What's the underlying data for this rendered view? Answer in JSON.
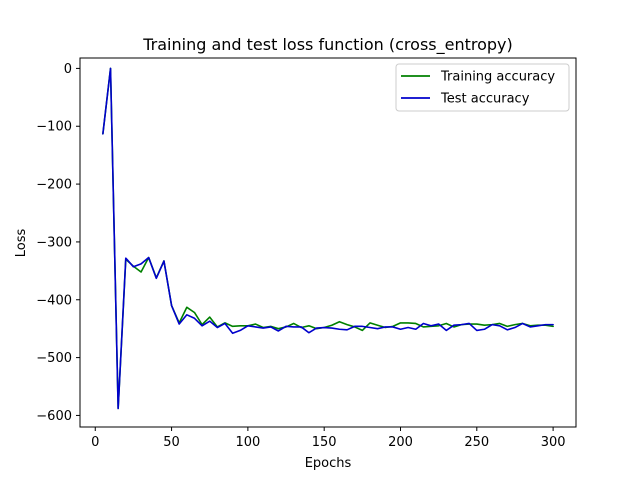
{
  "chart_data": {
    "type": "line",
    "title": "Training and test loss function (cross_entropy)",
    "xlabel": "Epochs",
    "ylabel": "Loss",
    "xlim": [
      -10,
      315
    ],
    "ylim": [
      -620,
      18
    ],
    "xticks": [
      0,
      50,
      100,
      150,
      200,
      250,
      300
    ],
    "yticks": [
      0,
      -100,
      -200,
      -300,
      -400,
      -500,
      -600
    ],
    "grid": false,
    "legend_position": "top-right",
    "x": [
      5,
      10,
      15,
      20,
      25,
      30,
      35,
      40,
      45,
      50,
      55,
      60,
      65,
      70,
      75,
      80,
      85,
      90,
      95,
      100,
      105,
      110,
      115,
      120,
      125,
      130,
      135,
      140,
      145,
      150,
      155,
      160,
      165,
      170,
      175,
      180,
      185,
      190,
      195,
      200,
      205,
      210,
      215,
      220,
      225,
      230,
      235,
      240,
      245,
      250,
      255,
      260,
      265,
      270,
      275,
      280,
      285,
      290,
      295,
      300
    ],
    "series": [
      {
        "name": "Training accuracy",
        "color": "#008000",
        "values": [
          -113,
          0,
          -588,
          -330,
          -342,
          -352,
          -327,
          -362,
          -333,
          -410,
          -440,
          -413,
          -422,
          -443,
          -430,
          -447,
          -440,
          -446,
          -445,
          -445,
          -442,
          -448,
          -446,
          -450,
          -447,
          -441,
          -448,
          -445,
          -450,
          -448,
          -444,
          -438,
          -443,
          -447,
          -453,
          -440,
          -444,
          -448,
          -446,
          -440,
          -440,
          -441,
          -447,
          -446,
          -445,
          -441,
          -447,
          -443,
          -442,
          -442,
          -444,
          -443,
          -441,
          -446,
          -443,
          -441,
          -445,
          -444,
          -444,
          -446
        ]
      },
      {
        "name": "Test accuracy",
        "color": "#0000cc",
        "values": [
          -113,
          0,
          -588,
          -328,
          -343,
          -338,
          -327,
          -363,
          -333,
          -410,
          -442,
          -426,
          -432,
          -445,
          -437,
          -448,
          -441,
          -458,
          -453,
          -445,
          -447,
          -449,
          -447,
          -454,
          -446,
          -447,
          -447,
          -457,
          -449,
          -448,
          -449,
          -451,
          -452,
          -446,
          -446,
          -448,
          -450,
          -447,
          -447,
          -451,
          -448,
          -451,
          -441,
          -445,
          -442,
          -453,
          -444,
          -443,
          -441,
          -453,
          -451,
          -443,
          -445,
          -452,
          -448,
          -441,
          -447,
          -445,
          -443,
          -443
        ]
      }
    ]
  }
}
